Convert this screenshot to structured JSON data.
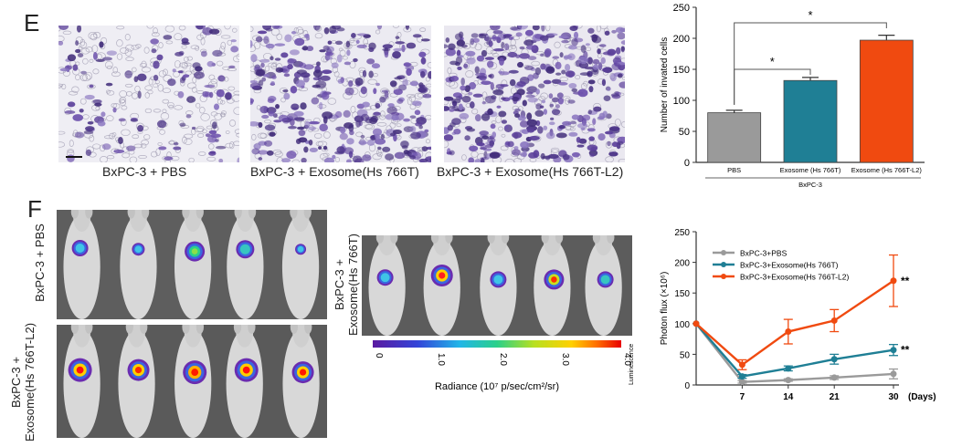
{
  "panel_e": {
    "letter": "E",
    "captions": [
      "BxPC-3 + PBS",
      "BxPC-3 + Exosome(Hs 766T)",
      "BxPC-3 + Exosome(Hs 766T-L2)"
    ]
  },
  "panel_f": {
    "letter": "F",
    "group_labels": {
      "pbs_line1": "BxPC-3 + PBS",
      "hs766t_line1": "BxPC-3 +",
      "hs766t_line2": "Exosome(Hs 766T)",
      "l2_line1": "BxPC-3 +",
      "l2_line2": "Exosome(Hs 766T-L2)"
    },
    "colorbar": {
      "ticks": [
        "0",
        "1.0",
        "2.0",
        "3.0",
        "4.0"
      ],
      "label": "Radiance (10⁷ p/sec/cm²/sr)",
      "side_label": "Luminescence"
    }
  },
  "colors": {
    "pbs": "#9a9a9a",
    "hs766t": "#1f7f95",
    "l2": "#f04a10"
  },
  "chart_data": [
    {
      "type": "bar",
      "categories": [
        "PBS",
        "Exosome (Hs 766T)",
        "Exosome (Hs 766T-L2)"
      ],
      "group_label": "BxPC-3",
      "values": [
        80,
        132,
        197
      ],
      "errors": [
        4,
        5,
        8
      ],
      "ylabel": "Number of invated cells",
      "ylim": [
        0,
        250
      ],
      "yticks": [
        "0",
        "50",
        "100",
        "150",
        "200",
        "250"
      ],
      "significance": [
        "*",
        "*"
      ]
    },
    {
      "type": "line",
      "x": [
        0,
        7,
        14,
        21,
        30
      ],
      "xticks": [
        "7",
        "14",
        "21",
        "30"
      ],
      "x_unit": "(Days)",
      "ylabel": "Photon flux (×10⁶)",
      "ylim": [
        0,
        250
      ],
      "yticks": [
        "0",
        "50",
        "100",
        "150",
        "200",
        "250"
      ],
      "series": [
        {
          "name": "BxPC-3+PBS",
          "values": [
            100,
            5,
            8,
            12,
            18
          ],
          "errors": [
            0,
            2,
            2,
            3,
            8
          ]
        },
        {
          "name": "BxPC-3+Exosome(Hs 766T)",
          "values": [
            100,
            14,
            27,
            42,
            57
          ],
          "errors": [
            0,
            3,
            4,
            8,
            9
          ]
        },
        {
          "name": "BxPC-3+Exosome(Hs 766T-L2)",
          "values": [
            100,
            33,
            87,
            105,
            170
          ],
          "errors": [
            0,
            8,
            20,
            18,
            42
          ]
        }
      ],
      "significance": [
        "**",
        "**"
      ]
    }
  ]
}
